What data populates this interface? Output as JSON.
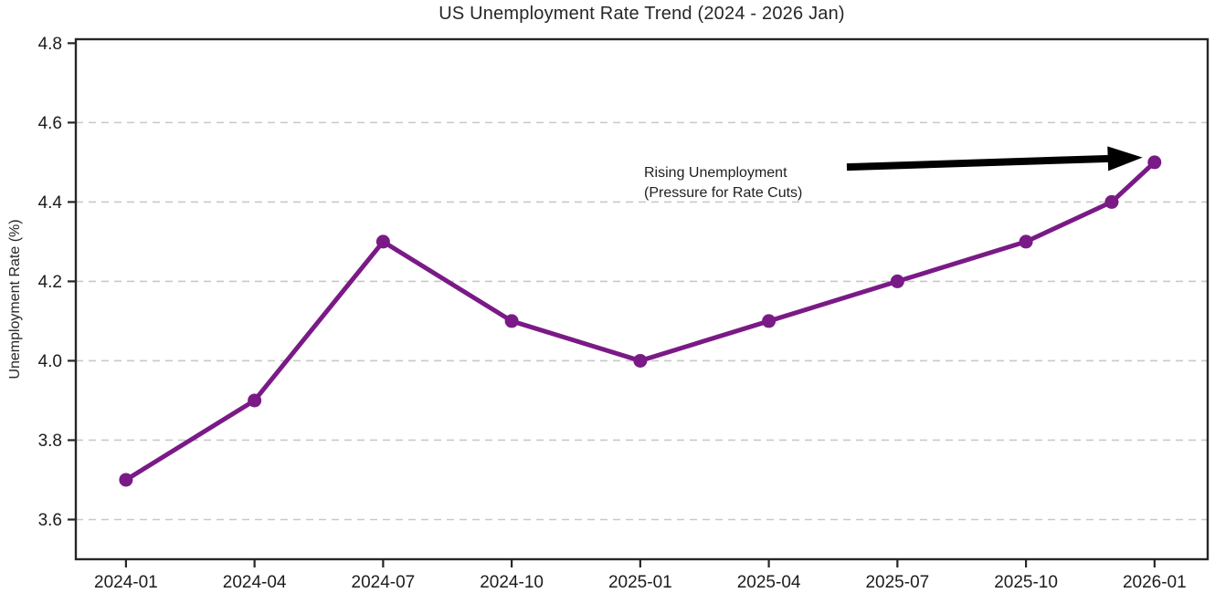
{
  "chart_data": {
    "type": "line",
    "title": "US Unemployment Rate Trend (2024 - 2026 Jan)",
    "xlabel": "",
    "ylabel": "Unemployment Rate (%)",
    "series": [
      {
        "name": "US Unemployment Rate",
        "color": "#7a1a86",
        "marker": "circle",
        "categories": [
          "2024-01",
          "2024-04",
          "2024-07",
          "2024-10",
          "2025-01",
          "2025-04",
          "2025-07",
          "2025-10",
          "2025-12",
          "2026-01"
        ],
        "month_index": [
          0,
          3,
          6,
          9,
          12,
          15,
          18,
          21,
          23,
          24
        ],
        "values": [
          3.7,
          3.9,
          4.3,
          4.1,
          4.0,
          4.1,
          4.2,
          4.3,
          4.4,
          4.5
        ]
      }
    ],
    "xticks": [
      {
        "label": "2024-01",
        "month_index": 0
      },
      {
        "label": "2024-04",
        "month_index": 3
      },
      {
        "label": "2024-07",
        "month_index": 6
      },
      {
        "label": "2024-10",
        "month_index": 9
      },
      {
        "label": "2025-01",
        "month_index": 12
      },
      {
        "label": "2025-04",
        "month_index": 15
      },
      {
        "label": "2025-07",
        "month_index": 18
      },
      {
        "label": "2025-10",
        "month_index": 21
      },
      {
        "label": "2026-01",
        "month_index": 24
      }
    ],
    "yticks": [
      "3.6",
      "3.8",
      "4.0",
      "4.2",
      "4.4",
      "4.6",
      "4.8"
    ],
    "ylim": [
      3.5,
      4.81
    ],
    "xlim_months": [
      -1.17,
      25.24
    ],
    "grid": {
      "axis": "y",
      "style": "dashed",
      "color": "#c9c9c9",
      "gridline_values": [
        3.6,
        3.8,
        4.0,
        4.2,
        4.4,
        4.6
      ]
    },
    "frame": {
      "box": true,
      "spine_color": "#262626"
    },
    "legend": null,
    "annotation": {
      "line1": "Rising Unemployment",
      "line2": "(Pressure for Rate Cuts)",
      "arrow": {
        "color": "#000000",
        "from_month": 16.82,
        "from_value": 4.488,
        "to_month": 23.72,
        "to_value": 4.512
      }
    }
  }
}
